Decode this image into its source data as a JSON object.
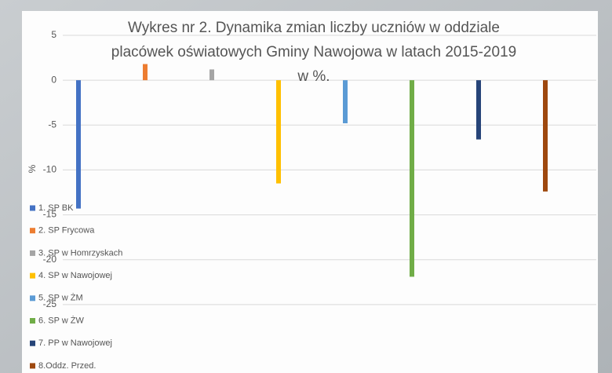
{
  "chart_data": {
    "type": "bar",
    "title": [
      "Wykres nr 2. Dynamika zmian liczby uczniów w oddziale",
      "placówek oświatowych Gminy Nawojowa w latach 2015-2019",
      "w %."
    ],
    "y_label": "%",
    "series": [
      {
        "name": "1. SP BK",
        "color": "#4472c4",
        "values": [
          -14.3
        ]
      },
      {
        "name": "2. SP Frycowa",
        "color": "#ed7d31",
        "values": [
          1.8
        ]
      },
      {
        "name": "3. SP w Homrzyskach",
        "color": "#a5a5a5",
        "values": [
          1.2
        ]
      },
      {
        "name": "4. SP w Nawojowej",
        "color": "#ffc000",
        "values": [
          -11.5
        ]
      },
      {
        "name": "5. SP w ŻM",
        "color": "#5b9bd5",
        "values": [
          -4.8
        ]
      },
      {
        "name": "6. SP w ŻW",
        "color": "#70ad47",
        "values": [
          -21.9
        ]
      },
      {
        "name": "7. PP w Nawojowej",
        "color": "#264478",
        "values": [
          -6.6
        ]
      },
      {
        "name": "8.Oddz. Przed.",
        "color": "#9e480e",
        "values": [
          -12.4
        ]
      }
    ],
    "ylim": [
      -30,
      5
    ],
    "yticks": [
      5,
      0,
      -5,
      -10,
      -15,
      -20,
      -25
    ],
    "grid": true,
    "legend": "left"
  }
}
